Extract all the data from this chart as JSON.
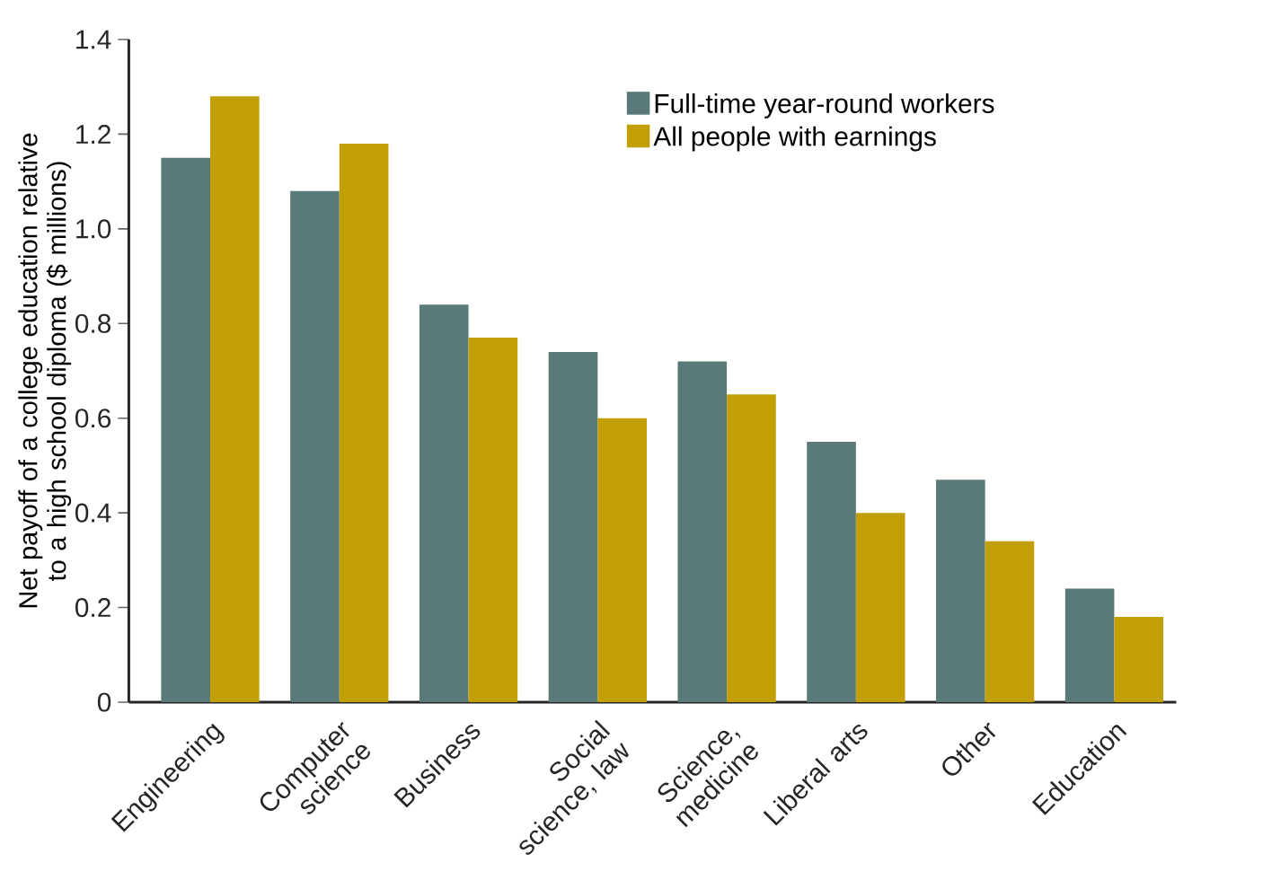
{
  "chart_data": {
    "type": "bar",
    "ylabel": "Net payoff of a college education relative to a high school diploma ($ millions)",
    "categories": [
      "Engineering",
      "Computer science",
      "Business",
      "Social science, law",
      "Science, medicine",
      "Liberal arts",
      "Other",
      "Education"
    ],
    "series": [
      {
        "name": "Full-time year-round workers",
        "color": "#5a7a7a",
        "values": [
          1.15,
          1.08,
          0.84,
          0.74,
          0.72,
          0.55,
          0.47,
          0.24
        ]
      },
      {
        "name": "All people with earnings",
        "color": "#c29f04",
        "values": [
          1.28,
          1.18,
          0.77,
          0.6,
          0.65,
          0.4,
          0.34,
          0.18
        ]
      }
    ],
    "ylim": [
      0,
      1.4
    ],
    "yticks": [
      0,
      0.2,
      0.4,
      0.6,
      0.8,
      {
        "value": 1,
        "label": "1.0"
      },
      1.2,
      1.4
    ],
    "legend": "top right",
    "grid": false
  }
}
